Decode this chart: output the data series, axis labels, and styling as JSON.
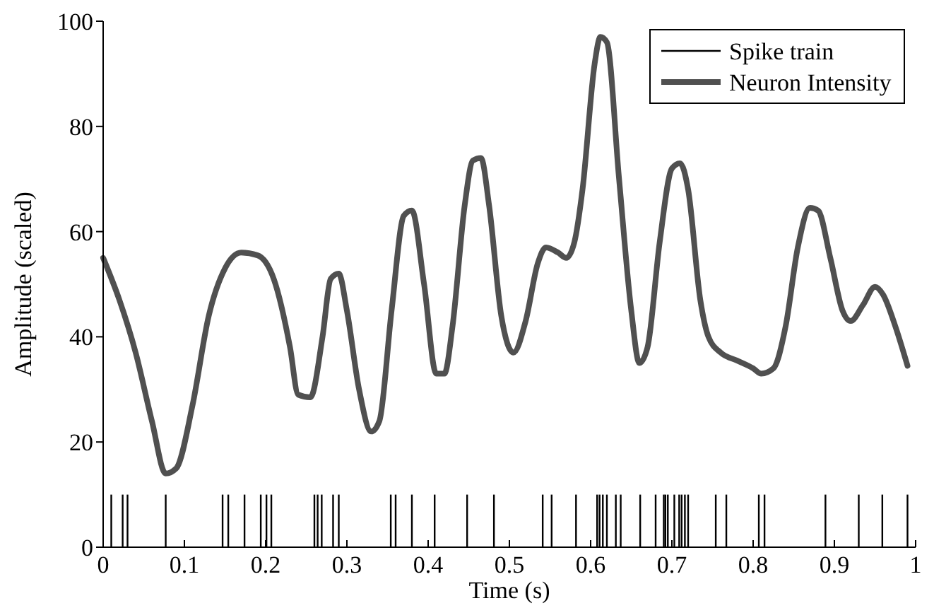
{
  "chart_data": {
    "type": "line",
    "xlabel": "Time (s)",
    "ylabel": "Amplitude (scaled)",
    "xlim": [
      0,
      1
    ],
    "ylim": [
      0,
      100
    ],
    "xticks": [
      0,
      0.1,
      0.2,
      0.3,
      0.4,
      0.5,
      0.6,
      0.7,
      0.8,
      0.9,
      1
    ],
    "yticks": [
      0,
      20,
      40,
      60,
      80,
      100
    ],
    "grid": false,
    "legend": "top right",
    "series": [
      {
        "name": "Spike train",
        "type": "bar",
        "color": "#000000",
        "x": [
          0.01,
          0.024,
          0.03,
          0.077,
          0.147,
          0.154,
          0.174,
          0.194,
          0.201,
          0.207,
          0.26,
          0.264,
          0.269,
          0.283,
          0.29,
          0.354,
          0.36,
          0.38,
          0.408,
          0.448,
          0.481,
          0.541,
          0.552,
          0.582,
          0.608,
          0.611,
          0.615,
          0.62,
          0.631,
          0.637,
          0.661,
          0.68,
          0.69,
          0.692,
          0.695,
          0.703,
          0.709,
          0.712,
          0.716,
          0.72,
          0.754,
          0.767,
          0.807,
          0.814,
          0.889,
          0.93,
          0.959,
          0.99
        ],
        "values": [
          10,
          10,
          10,
          10,
          10,
          10,
          10,
          10,
          10,
          10,
          10,
          10,
          10,
          10,
          10,
          10,
          10,
          10,
          10,
          10,
          10,
          10,
          10,
          10,
          10,
          10,
          10,
          10,
          10,
          10,
          10,
          10,
          10,
          10,
          10,
          10,
          10,
          10,
          10,
          10,
          10,
          10,
          10,
          10,
          10,
          10,
          10,
          10
        ]
      },
      {
        "name": "Neuron Intensity",
        "color": "#505050",
        "x": [
          0,
          0.02,
          0.04,
          0.06,
          0.077,
          0.09,
          0.11,
          0.13,
          0.15,
          0.17,
          0.19,
          0.21,
          0.23,
          0.24,
          0.255,
          0.27,
          0.28,
          0.29,
          0.3,
          0.315,
          0.33,
          0.34,
          0.355,
          0.37,
          0.38,
          0.395,
          0.41,
          0.42,
          0.43,
          0.445,
          0.455,
          0.465,
          0.475,
          0.49,
          0.505,
          0.52,
          0.535,
          0.545,
          0.56,
          0.57,
          0.58,
          0.59,
          0.605,
          0.612,
          0.62,
          0.635,
          0.65,
          0.66,
          0.67,
          0.685,
          0.7,
          0.71,
          0.72,
          0.735,
          0.745,
          0.76,
          0.78,
          0.8,
          0.81,
          0.825,
          0.84,
          0.855,
          0.87,
          0.88,
          0.895,
          0.91,
          0.92,
          0.935,
          0.95,
          0.96,
          0.975,
          0.99
        ],
        "values": [
          55,
          47,
          37,
          24,
          14,
          15,
          27,
          44,
          53,
          56,
          55.5,
          51,
          38,
          29,
          28.5,
          40,
          51,
          52,
          45,
          30,
          22,
          24,
          45,
          63,
          64,
          50,
          33,
          33,
          42,
          65,
          73.5,
          74,
          65,
          44,
          37,
          43,
          54,
          57,
          56,
          55,
          58,
          68,
          92,
          97,
          96,
          70,
          45,
          35,
          38,
          58,
          72,
          73,
          68,
          47,
          40,
          37,
          35.5,
          34,
          33,
          34,
          42,
          57,
          64.5,
          64,
          55,
          45,
          43,
          46,
          49.5,
          48,
          42,
          34.5
        ]
      }
    ]
  }
}
